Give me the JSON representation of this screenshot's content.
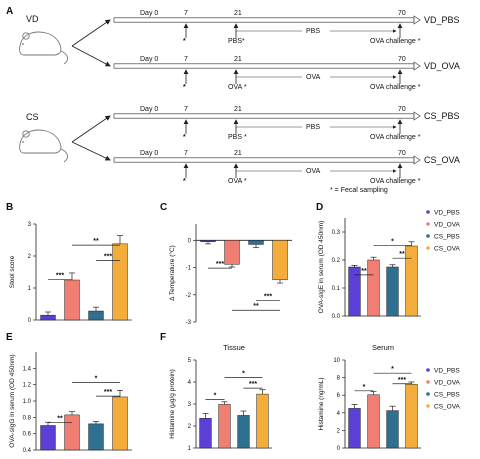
{
  "panel_labels": {
    "A": "A",
    "B": "B",
    "C": "C",
    "D": "D",
    "E": "E",
    "F": "F"
  },
  "groups": {
    "vd": "VD",
    "cs": "CS"
  },
  "timeline": {
    "days": [
      "Day 0",
      "7",
      "21",
      "70"
    ],
    "rows": [
      {
        "name": "VD_PBS",
        "early": "PBS*",
        "mid": "PBS",
        "late": "OVA challenge *"
      },
      {
        "name": "VD_OVA",
        "early": "OVA *",
        "mid": "OVA",
        "late": "OVA challenge *"
      },
      {
        "name": "CS_PBS",
        "early": "PBS *",
        "mid": "PBS",
        "late": "OVA challenge *"
      },
      {
        "name": "CS_OVA",
        "early": "OVA *",
        "mid": "OVA",
        "late": "OVA challenge *"
      }
    ],
    "star": "*",
    "footnote": "* = Fecal sampling"
  },
  "colors": {
    "vd_pbs": "#5b3fd6",
    "vd_ova": "#f07e72",
    "cs_pbs": "#2f6f8f",
    "cs_ova": "#f4ad3a"
  },
  "legend": [
    "VD_PBS",
    "VD_OVA",
    "CS_PBS",
    "CS_OVA"
  ],
  "chart_data": [
    {
      "panel": "B",
      "type": "bar",
      "categories": [
        "VD_PBS",
        "VD_OVA",
        "CS_PBS",
        "CS_OVA"
      ],
      "values": [
        0.15,
        1.25,
        0.28,
        2.38
      ],
      "errors": [
        0.1,
        0.22,
        0.12,
        0.26
      ],
      "ylabel": "Stool score",
      "ylim": [
        0,
        3
      ],
      "yticks": [
        "0",
        "1",
        "2",
        "3"
      ],
      "significance": [
        "***",
        "**",
        "***"
      ]
    },
    {
      "panel": "C",
      "type": "bar",
      "categories": [
        "VD_PBS",
        "VD_OVA",
        "CS_PBS",
        "CS_OVA"
      ],
      "values": [
        -0.05,
        -0.88,
        -0.15,
        -1.45
      ],
      "errors": [
        0.08,
        0.1,
        0.12,
        0.12
      ],
      "ylabel": "Δ Temperature (°C)",
      "ylim": [
        -3,
        0.6
      ],
      "yticks": [
        "0",
        "-1",
        "-2",
        "-3"
      ],
      "significance": [
        "***",
        "***",
        "**"
      ]
    },
    {
      "panel": "D",
      "type": "bar",
      "categories": [
        "VD_PBS",
        "VD_OVA",
        "CS_PBS",
        "CS_OVA"
      ],
      "values": [
        0.175,
        0.2,
        0.175,
        0.25
      ],
      "errors": [
        0.006,
        0.01,
        0.008,
        0.015
      ],
      "ylabel": "OVA-sIgE in serum (OD 450nm)",
      "ylim": [
        0.0,
        0.35
      ],
      "yticks": [
        "0.0",
        "0.1",
        "0.2",
        "0.3"
      ],
      "significance": [
        "**",
        "*",
        "**"
      ]
    },
    {
      "panel": "E",
      "type": "bar",
      "categories": [
        "VD_PBS",
        "VD_OVA",
        "CS_PBS",
        "CS_OVA"
      ],
      "values": [
        0.7,
        0.83,
        0.72,
        1.05
      ],
      "errors": [
        0.04,
        0.04,
        0.03,
        0.08
      ],
      "ylabel": "OVA-sIgG in serum (OD 450nm)",
      "ylim": [
        0.4,
        1.6
      ],
      "yticks": [
        "0.4",
        "0.6",
        "0.8",
        "1.0",
        "1.2",
        "1.4"
      ],
      "significance": [
        "**",
        "*",
        "***"
      ]
    },
    {
      "panel": "F",
      "type": "bar",
      "title": "Tissue",
      "categories": [
        "VD_PBS",
        "VD_OVA",
        "CS_PBS",
        "CS_OVA"
      ],
      "values": [
        2.35,
        2.98,
        2.48,
        3.45
      ],
      "errors": [
        0.22,
        0.12,
        0.2,
        0.2
      ],
      "ylabel": "Histamine (μg/g protein)",
      "ylim": [
        1,
        5
      ],
      "yticks": [
        "1",
        "2",
        "3",
        "4",
        "5"
      ],
      "significance": [
        "*",
        "*",
        "***"
      ]
    },
    {
      "panel": "F",
      "type": "bar",
      "title": "Serum",
      "categories": [
        "VD_PBS",
        "VD_OVA",
        "CS_PBS",
        "CS_OVA"
      ],
      "values": [
        4.5,
        6.05,
        4.25,
        7.25
      ],
      "errors": [
        0.45,
        0.35,
        0.5,
        0.25
      ],
      "ylabel": "Histamine (ng/mL)",
      "ylim": [
        0,
        10
      ],
      "yticks": [
        "0",
        "2",
        "4",
        "6",
        "8",
        "10"
      ],
      "significance": [
        "*",
        "*",
        "***"
      ]
    }
  ]
}
